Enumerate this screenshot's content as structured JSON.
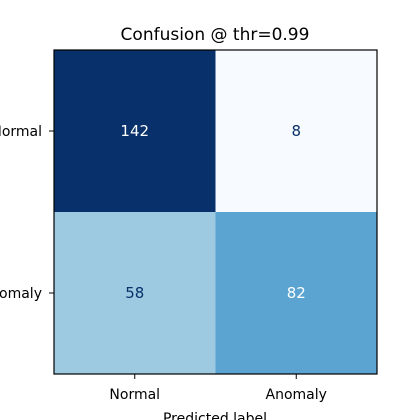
{
  "chart_data": {
    "type": "heatmap",
    "title": "Confusion @ thr=0.99",
    "xlabel": "Predicted label",
    "ylabel": "",
    "x_categories": [
      "Normal",
      "Anomaly"
    ],
    "y_categories": [
      "Normal",
      "Anomaly"
    ],
    "values": [
      [
        142,
        8
      ],
      [
        58,
        82
      ]
    ],
    "colormap": "Blues",
    "colors": {
      "cells": [
        [
          "#08306b",
          "#f7fbff"
        ],
        [
          "#9ecae1",
          "#5ba3d0"
        ]
      ],
      "text_on_dark": "#ffffff",
      "text_on_light": "#08306b",
      "frame": "#000000"
    }
  }
}
